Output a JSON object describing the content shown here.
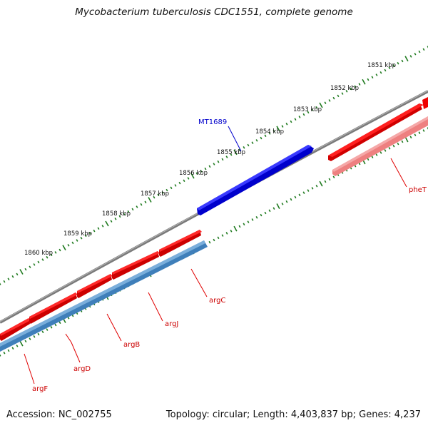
{
  "title": "Mycobacterium tuberculosis CDC1551, complete genome",
  "footer": {
    "accession": "Accession: NC_002755",
    "stats": "Topology: circular; Length: 4,403,837 bp; Genes: 4,237"
  },
  "ticks": [
    {
      "label": "1851 kbp",
      "pos": 1851
    },
    {
      "label": "1852 kbp",
      "pos": 1852
    },
    {
      "label": "1853 kbp",
      "pos": 1853
    },
    {
      "label": "1854 kbp",
      "pos": 1854
    },
    {
      "label": "1855 kbp",
      "pos": 1855
    },
    {
      "label": "1856 kbp",
      "pos": 1856
    },
    {
      "label": "1857 kbp",
      "pos": 1857
    },
    {
      "label": "1858 kbp",
      "pos": 1858
    },
    {
      "label": "1859 kbp",
      "pos": 1859
    },
    {
      "label": "1860 kbp",
      "pos": 1860
    }
  ],
  "features": [
    {
      "name": "MT1689",
      "color": "#0000ee",
      "kind": "feature"
    }
  ],
  "genes": [
    {
      "name": "pheT",
      "color": "#e00000"
    },
    {
      "name": "argC",
      "color": "#e00000"
    },
    {
      "name": "argJ",
      "color": "#e00000"
    },
    {
      "name": "argB",
      "color": "#e00000"
    },
    {
      "name": "argD",
      "color": "#e00000"
    },
    {
      "name": "argF",
      "color": "#e00000"
    }
  ],
  "colors": {
    "backbone": "#7a7a7a",
    "cds": "#ee0000",
    "cds_light": "#f08888",
    "gene_blue": "#4a86bf",
    "tick": "#1e7a1e",
    "feature": "#0000ee"
  }
}
